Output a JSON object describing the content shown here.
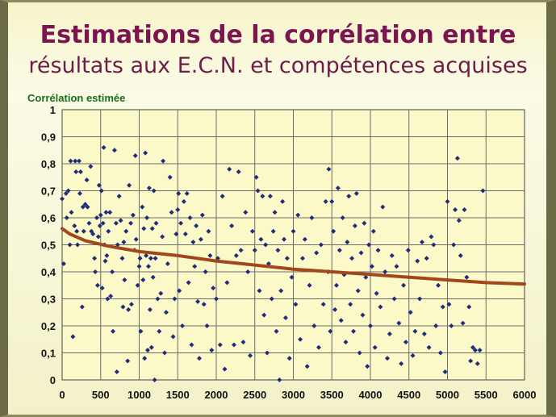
{
  "title_line1": "Estimations de la corrélation entre",
  "title_line2": "résultats aux E.C.N. et compétences acquises",
  "chart_data": {
    "type": "scatter",
    "ylabel": "Corrélation estimée",
    "xlim": [
      0,
      6000
    ],
    "ylim": [
      0,
      1
    ],
    "x_ticks": [
      "0",
      "500",
      "1000",
      "1500",
      "2000",
      "2500",
      "3000",
      "3500",
      "4000",
      "4500",
      "5000",
      "5500",
      "6000"
    ],
    "y_ticks": [
      "0",
      "0,1",
      "0,2",
      "0,3",
      "0,4",
      "0,5",
      "0,6",
      "0,7",
      "0,8",
      "0,9",
      "1"
    ],
    "grid": true,
    "colors": {
      "points": "#1f2d7a",
      "trend": "#a2461c",
      "plot_bg": "#fcf9c8",
      "grid": "#6b6b6b"
    },
    "series": [
      {
        "kind": "points",
        "points": [
          [
            0,
            0.67
          ],
          [
            20,
            0.43
          ],
          [
            50,
            0.69
          ],
          [
            60,
            0.6
          ],
          [
            80,
            0.7
          ],
          [
            100,
            0.5
          ],
          [
            110,
            0.81
          ],
          [
            120,
            0.62
          ],
          [
            140,
            0.16
          ],
          [
            160,
            0.57
          ],
          [
            170,
            0.81
          ],
          [
            180,
            0.77
          ],
          [
            190,
            0.55
          ],
          [
            200,
            0.5
          ],
          [
            220,
            0.81
          ],
          [
            230,
            0.69
          ],
          [
            240,
            0.77
          ],
          [
            260,
            0.27
          ],
          [
            270,
            0.64
          ],
          [
            280,
            0.55
          ],
          [
            300,
            0.65
          ],
          [
            320,
            0.74
          ],
          [
            330,
            0.64
          ],
          [
            350,
            0.58
          ],
          [
            370,
            0.79
          ],
          [
            380,
            0.55
          ],
          [
            400,
            0.54
          ],
          [
            420,
            0.45
          ],
          [
            430,
            0.4
          ],
          [
            450,
            0.6
          ],
          [
            460,
            0.35
          ],
          [
            470,
            0.53
          ],
          [
            480,
            0.72
          ],
          [
            490,
            0.57
          ],
          [
            500,
            0.61
          ],
          [
            510,
            0.7
          ],
          [
            520,
            0.34
          ],
          [
            530,
            0.58
          ],
          [
            540,
            0.86
          ],
          [
            550,
            0.5
          ],
          [
            560,
            0.44
          ],
          [
            570,
            0.62
          ],
          [
            580,
            0.46
          ],
          [
            590,
            0.3
          ],
          [
            600,
            0.55
          ],
          [
            620,
            0.62
          ],
          [
            630,
            0.31
          ],
          [
            650,
            0.4
          ],
          [
            660,
            0.18
          ],
          [
            680,
            0.85
          ],
          [
            700,
            0.58
          ],
          [
            710,
            0.03
          ],
          [
            720,
            0.5
          ],
          [
            740,
            0.68
          ],
          [
            760,
            0.59
          ],
          [
            780,
            0.45
          ],
          [
            790,
            0.27
          ],
          [
            800,
            0.51
          ],
          [
            810,
            0.37
          ],
          [
            830,
            0.55
          ],
          [
            850,
            0.07
          ],
          [
            860,
            0.26
          ],
          [
            870,
            0.72
          ],
          [
            890,
            0.58
          ],
          [
            900,
            0.28
          ],
          [
            920,
            0.61
          ],
          [
            940,
            0.48
          ],
          [
            950,
            0.83
          ],
          [
            960,
            0.52
          ],
          [
            980,
            0.35
          ],
          [
            1000,
            0.42
          ],
          [
            1010,
            0.45
          ],
          [
            1020,
            0.18
          ],
          [
            1040,
            0.64
          ],
          [
            1050,
            0.37
          ],
          [
            1060,
            0.56
          ],
          [
            1070,
            0.08
          ],
          [
            1080,
            0.84
          ],
          [
            1090,
            0.46
          ],
          [
            1100,
            0.6
          ],
          [
            1110,
            0.11
          ],
          [
            1120,
            0.42
          ],
          [
            1130,
            0.71
          ],
          [
            1140,
            0.26
          ],
          [
            1150,
            0.45
          ],
          [
            1160,
            0.12
          ],
          [
            1170,
            0.56
          ],
          [
            1180,
            0.38
          ],
          [
            1190,
            0.7
          ],
          [
            1200,
            0.0
          ],
          [
            1210,
            0.45
          ],
          [
            1220,
            0.58
          ],
          [
            1240,
            0.3
          ],
          [
            1260,
            0.18
          ],
          [
            1280,
            0.32
          ],
          [
            1300,
            0.53
          ],
          [
            1310,
            0.81
          ],
          [
            1330,
            0.1
          ],
          [
            1350,
            0.25
          ],
          [
            1370,
            0.43
          ],
          [
            1400,
            0.75
          ],
          [
            1420,
            0.62
          ],
          [
            1440,
            0.16
          ],
          [
            1460,
            0.3
          ],
          [
            1480,
            0.54
          ],
          [
            1500,
            0.63
          ],
          [
            1510,
            0.69
          ],
          [
            1520,
            0.33
          ],
          [
            1540,
            0.58
          ],
          [
            1560,
            0.2
          ],
          [
            1580,
            0.66
          ],
          [
            1600,
            0.54
          ],
          [
            1620,
            0.69
          ],
          [
            1640,
            0.36
          ],
          [
            1660,
            0.6
          ],
          [
            1680,
            0.13
          ],
          [
            1700,
            0.51
          ],
          [
            1720,
            0.42
          ],
          [
            1740,
            0.57
          ],
          [
            1760,
            0.29
          ],
          [
            1780,
            0.08
          ],
          [
            1800,
            0.52
          ],
          [
            1820,
            0.61
          ],
          [
            1840,
            0.28
          ],
          [
            1860,
            0.4
          ],
          [
            1880,
            0.2
          ],
          [
            1900,
            0.55
          ],
          [
            1920,
            0.46
          ],
          [
            1940,
            0.11
          ],
          [
            1960,
            0.34
          ],
          [
            2000,
            0.3
          ],
          [
            2020,
            0.45
          ],
          [
            2050,
            0.13
          ],
          [
            2080,
            0.68
          ],
          [
            2110,
            0.04
          ],
          [
            2140,
            0.36
          ],
          [
            2170,
            0.78
          ],
          [
            2200,
            0.57
          ],
          [
            2230,
            0.13
          ],
          [
            2260,
            0.46
          ],
          [
            2290,
            0.77
          ],
          [
            2320,
            0.48
          ],
          [
            2350,
            0.14
          ],
          [
            2380,
            0.62
          ],
          [
            2410,
            0.4
          ],
          [
            2440,
            0.09
          ],
          [
            2470,
            0.55
          ],
          [
            2500,
            0.48
          ],
          [
            2520,
            0.75
          ],
          [
            2540,
            0.7
          ],
          [
            2560,
            0.33
          ],
          [
            2580,
            0.52
          ],
          [
            2600,
            0.68
          ],
          [
            2620,
            0.24
          ],
          [
            2640,
            0.5
          ],
          [
            2660,
            0.1
          ],
          [
            2680,
            0.43
          ],
          [
            2700,
            0.68
          ],
          [
            2720,
            0.3
          ],
          [
            2740,
            0.55
          ],
          [
            2760,
            0.62
          ],
          [
            2780,
            0.18
          ],
          [
            2800,
            0.48
          ],
          [
            2820,
            0.0
          ],
          [
            2840,
            0.33
          ],
          [
            2860,
            0.66
          ],
          [
            2880,
            0.52
          ],
          [
            2900,
            0.23
          ],
          [
            2920,
            0.45
          ],
          [
            2950,
            0.08
          ],
          [
            2980,
            0.38
          ],
          [
            3000,
            0.55
          ],
          [
            3030,
            0.28
          ],
          [
            3060,
            0.61
          ],
          [
            3090,
            0.15
          ],
          [
            3120,
            0.45
          ],
          [
            3150,
            0.52
          ],
          [
            3180,
            0.05
          ],
          [
            3210,
            0.35
          ],
          [
            3240,
            0.6
          ],
          [
            3270,
            0.2
          ],
          [
            3300,
            0.47
          ],
          [
            3330,
            0.12
          ],
          [
            3360,
            0.5
          ],
          [
            3390,
            0.28
          ],
          [
            3420,
            0.66
          ],
          [
            3450,
            0.4
          ],
          [
            3460,
            0.78
          ],
          [
            3480,
            0.18
          ],
          [
            3500,
            0.66
          ],
          [
            3520,
            0.55
          ],
          [
            3540,
            0.26
          ],
          [
            3560,
            0.35
          ],
          [
            3580,
            0.71
          ],
          [
            3600,
            0.48
          ],
          [
            3620,
            0.22
          ],
          [
            3640,
            0.6
          ],
          [
            3660,
            0.39
          ],
          [
            3680,
            0.14
          ],
          [
            3700,
            0.51
          ],
          [
            3720,
            0.68
          ],
          [
            3740,
            0.28
          ],
          [
            3760,
            0.45
          ],
          [
            3780,
            0.18
          ],
          [
            3800,
            0.57
          ],
          [
            3820,
            0.69
          ],
          [
            3840,
            0.33
          ],
          [
            3860,
            0.1
          ],
          [
            3880,
            0.47
          ],
          [
            3900,
            0.24
          ],
          [
            3920,
            0.58
          ],
          [
            3940,
            0.38
          ],
          [
            3960,
            0.05
          ],
          [
            3980,
            0.5
          ],
          [
            4000,
            0.2
          ],
          [
            4020,
            0.42
          ],
          [
            4040,
            0.55
          ],
          [
            4060,
            0.12
          ],
          [
            4080,
            0.32
          ],
          [
            4100,
            0.48
          ],
          [
            4130,
            0.27
          ],
          [
            4160,
            0.64
          ],
          [
            4190,
            0.4
          ],
          [
            4220,
            0.08
          ],
          [
            4250,
            0.17
          ],
          [
            4280,
            0.46
          ],
          [
            4310,
            0.3
          ],
          [
            4340,
            0.42
          ],
          [
            4370,
            0.21
          ],
          [
            4400,
            0.06
          ],
          [
            4430,
            0.35
          ],
          [
            4460,
            0.14
          ],
          [
            4490,
            0.48
          ],
          [
            4520,
            0.25
          ],
          [
            4550,
            0.09
          ],
          [
            4580,
            0.18
          ],
          [
            4610,
            0.44
          ],
          [
            4640,
            0.3
          ],
          [
            4670,
            0.51
          ],
          [
            4700,
            0.17
          ],
          [
            4730,
            0.45
          ],
          [
            4760,
            0.12
          ],
          [
            4790,
            0.53
          ],
          [
            4820,
            0.5
          ],
          [
            4850,
            0.2
          ],
          [
            4880,
            0.35
          ],
          [
            4910,
            0.1
          ],
          [
            4940,
            0.27
          ],
          [
            4970,
            0.03
          ],
          [
            5000,
            0.66
          ],
          [
            5020,
            0.28
          ],
          [
            5050,
            0.2
          ],
          [
            5080,
            0.5
          ],
          [
            5100,
            0.63
          ],
          [
            5130,
            0.82
          ],
          [
            5150,
            0.59
          ],
          [
            5170,
            0.46
          ],
          [
            5200,
            0.21
          ],
          [
            5220,
            0.63
          ],
          [
            5250,
            0.38
          ],
          [
            5280,
            0.27
          ],
          [
            5300,
            0.07
          ],
          [
            5330,
            0.12
          ],
          [
            5360,
            0.11
          ],
          [
            5390,
            0.06
          ],
          [
            5420,
            0.11
          ],
          [
            5460,
            0.7
          ]
        ]
      },
      {
        "kind": "trend",
        "points": [
          [
            0,
            0.56
          ],
          [
            100,
            0.54
          ],
          [
            300,
            0.515
          ],
          [
            600,
            0.495
          ],
          [
            1000,
            0.475
          ],
          [
            1500,
            0.46
          ],
          [
            2000,
            0.44
          ],
          [
            2500,
            0.425
          ],
          [
            3000,
            0.41
          ],
          [
            3500,
            0.4
          ],
          [
            4000,
            0.39
          ],
          [
            4500,
            0.38
          ],
          [
            5000,
            0.37
          ],
          [
            5500,
            0.36
          ],
          [
            6000,
            0.355
          ]
        ]
      }
    ]
  }
}
